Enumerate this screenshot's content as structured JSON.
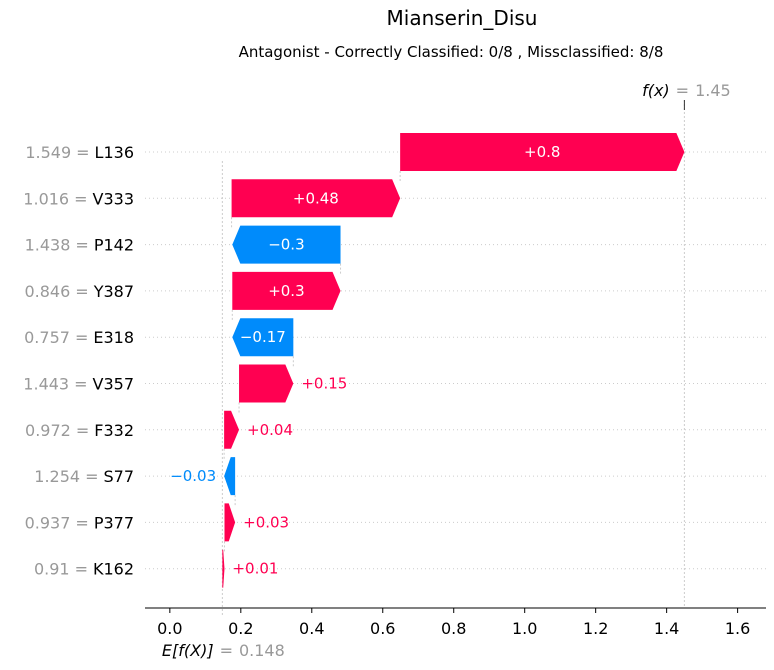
{
  "chart_data": {
    "type": "waterfall",
    "title": "Mianserin_Disu",
    "subtitle": "Antagonist - Correctly Classified: 0/8 , Missclassified: 8/8",
    "base_value": 0.148,
    "base_value_text": "0.148",
    "output_value": 1.45,
    "output_value_text": "1.45",
    "fx_label": "f(x)",
    "ex_label": "E[f(X)]",
    "eq_sign": "=",
    "xlim": [
      -0.07,
      1.68
    ],
    "xticks": [
      0.0,
      0.2,
      0.4,
      0.6,
      0.8,
      1.0,
      1.2,
      1.4,
      1.6
    ],
    "xtick_labels": [
      "0.0",
      "0.2",
      "0.4",
      "0.6",
      "0.8",
      "1.0",
      "1.2",
      "1.4",
      "1.6"
    ],
    "colors": {
      "positive": "#ff0051",
      "negative": "#008bfb",
      "muted": "#999999",
      "grid": "#cccccc"
    },
    "features": [
      {
        "value": "1.549",
        "name": "L136",
        "contribution": 0.8,
        "label": "+0.8",
        "start": 0.649,
        "end": 1.45
      },
      {
        "value": "1.016",
        "name": "V333",
        "contribution": 0.48,
        "label": "+0.48",
        "start": 0.174,
        "end": 0.649
      },
      {
        "value": "1.438",
        "name": "P142",
        "contribution": -0.3,
        "label": "−0.3",
        "start": 0.481,
        "end": 0.176
      },
      {
        "value": "0.846",
        "name": "Y387",
        "contribution": 0.3,
        "label": "+0.3",
        "start": 0.176,
        "end": 0.481
      },
      {
        "value": "0.757",
        "name": "E318",
        "contribution": -0.17,
        "label": "−0.17",
        "start": 0.348,
        "end": 0.176
      },
      {
        "value": "1.443",
        "name": "V357",
        "contribution": 0.15,
        "label": "+0.15",
        "start": 0.195,
        "end": 0.348
      },
      {
        "value": "0.972",
        "name": "F332",
        "contribution": 0.04,
        "label": "+0.04",
        "start": 0.153,
        "end": 0.195
      },
      {
        "value": "1.254",
        "name": "S77",
        "contribution": -0.03,
        "label": "−0.03",
        "start": 0.184,
        "end": 0.153
      },
      {
        "value": "0.937",
        "name": "P377",
        "contribution": 0.03,
        "label": "+0.03",
        "start": 0.154,
        "end": 0.184
      },
      {
        "value": "0.91",
        "name": "K162",
        "contribution": 0.01,
        "label": "+0.01",
        "start": 0.148,
        "end": 0.154
      }
    ]
  }
}
